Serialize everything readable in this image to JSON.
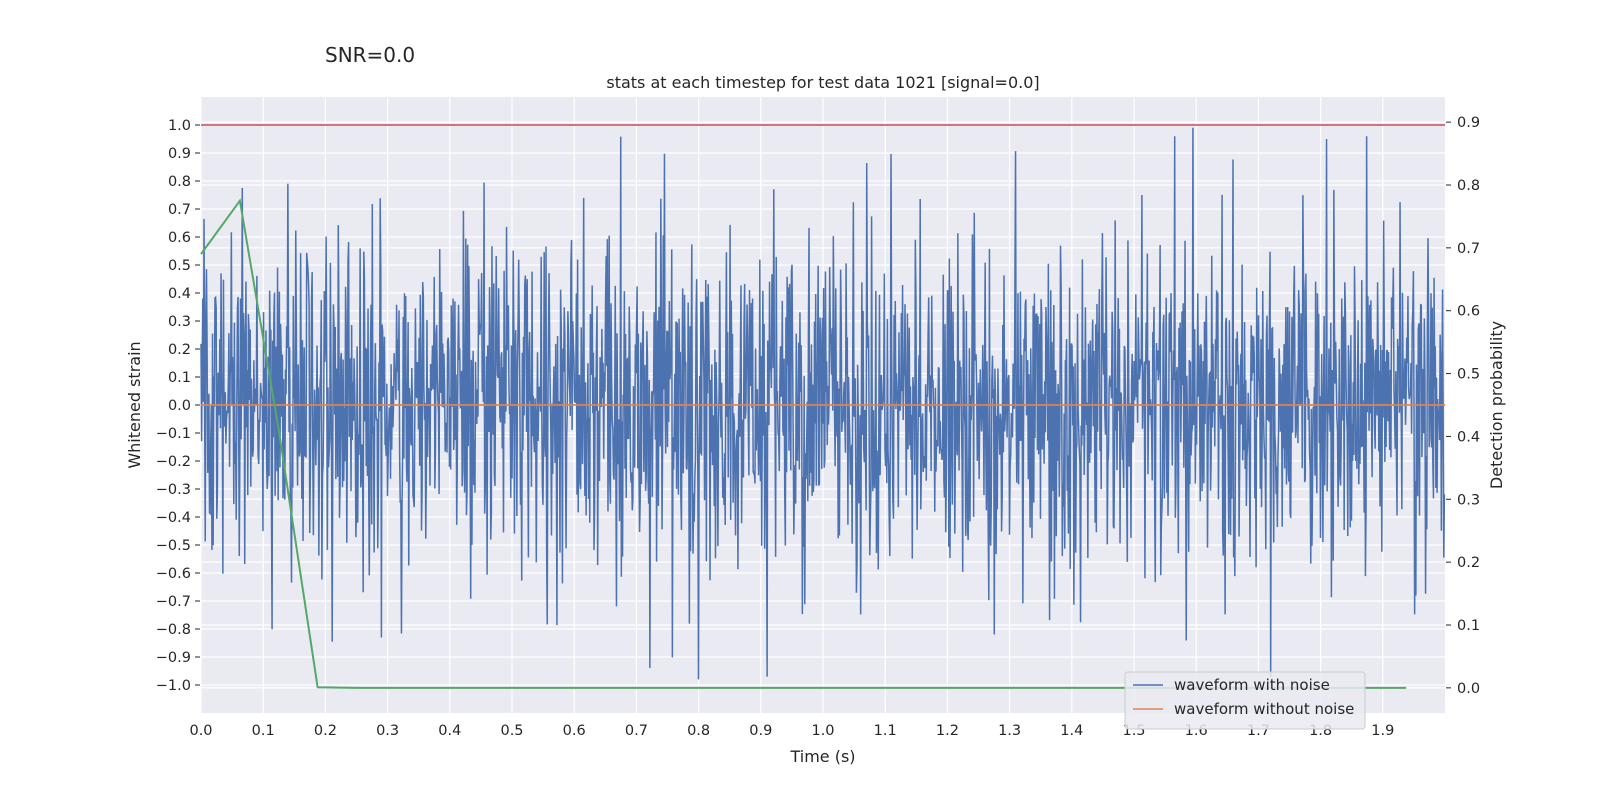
{
  "suptitle": "SNR=0.0",
  "chart_data": {
    "type": "line",
    "title": "stats at each timestep for test data 1021 [signal=0.0]",
    "xlabel": "Time (s)",
    "ylabel": "Whitened strain",
    "y2label": "Detection probability",
    "xlim": [
      0.0,
      2.0
    ],
    "ylim": [
      -1.1,
      1.1
    ],
    "y2lim": [
      -0.04,
      0.94
    ],
    "x_ticks": [
      "0.0",
      "0.1",
      "0.2",
      "0.3",
      "0.4",
      "0.5",
      "0.6",
      "0.7",
      "0.8",
      "0.9",
      "1.0",
      "1.1",
      "1.2",
      "1.3",
      "1.4",
      "1.5",
      "1.6",
      "1.7",
      "1.8",
      "1.9"
    ],
    "y_ticks": [
      "1.0",
      "0.9",
      "0.8",
      "0.7",
      "0.6",
      "0.5",
      "0.4",
      "0.3",
      "0.2",
      "0.1",
      "0.0",
      "−0.1",
      "−0.2",
      "−0.3",
      "−0.4",
      "−0.5",
      "−0.6",
      "−0.7",
      "−0.8",
      "−0.9",
      "−1.0"
    ],
    "y2_ticks": [
      "0.9",
      "0.8",
      "0.7",
      "0.6",
      "0.5",
      "0.4",
      "0.3",
      "0.2",
      "0.1",
      "0.0"
    ],
    "grid": true,
    "legend_position": "lower-right",
    "threshold": {
      "y": 1.0,
      "color": "#c44e52"
    },
    "series": [
      {
        "name": "waveform with noise",
        "color": "#4c72b0",
        "axis": "left",
        "note": "noise-like whitened strain, ~2048 samples over 0–2 s, roughly within ±1.0",
        "sample_rate": 1024,
        "amplitude_std": 0.3,
        "peaks": [
          [
            0.14,
            0.79
          ],
          [
            0.8,
            -0.98
          ],
          [
            0.91,
            -0.97
          ],
          [
            1.595,
            0.99
          ],
          [
            1.72,
            -0.97
          ],
          [
            1.81,
            0.95
          ]
        ]
      },
      {
        "name": "waveform without noise",
        "color": "#dd8452",
        "axis": "left",
        "x": [
          0.0,
          2.0
        ],
        "y": [
          0.0,
          0.0
        ]
      },
      {
        "name": "",
        "color": "#55a868",
        "axis": "right",
        "x": [
          0.0,
          0.0625,
          0.125,
          0.1875,
          0.25,
          0.3125,
          0.375,
          0.4375,
          0.5,
          0.5625,
          0.625,
          0.6875,
          0.75,
          0.8125,
          0.875,
          0.9375,
          1.0,
          1.0625,
          1.125,
          1.1875,
          1.25,
          1.3125,
          1.375,
          1.4375,
          1.5,
          1.5625,
          1.625,
          1.6875,
          1.75,
          1.8125,
          1.875,
          1.9375
        ],
        "y": [
          0.69,
          0.775,
          0.41,
          0.001,
          0.0,
          0.0,
          0.0,
          0.0,
          0.0,
          0.0,
          0.0,
          0.0,
          0.0,
          0.0,
          0.0,
          0.0,
          0.0,
          0.0,
          0.0,
          0.0,
          0.0,
          0.0,
          0.0,
          0.0,
          0.0,
          0.0,
          0.0,
          0.0,
          0.0,
          0.0,
          0.0,
          0.0
        ]
      }
    ]
  }
}
